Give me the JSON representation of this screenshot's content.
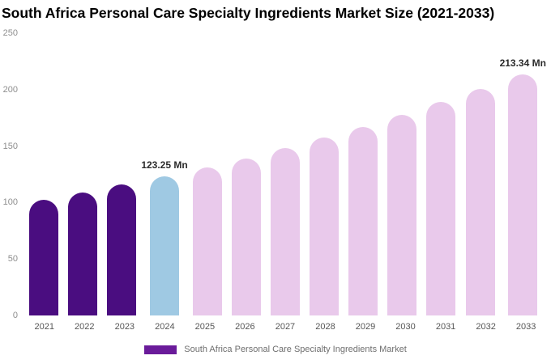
{
  "chart_data": {
    "type": "bar",
    "title": "South Africa Personal Care Specialty Ingredients Market Size (2021-2033)",
    "xlabel": "",
    "ylabel": "",
    "ylim": [
      0,
      250
    ],
    "yticks": [
      0,
      50,
      100,
      150,
      200,
      250
    ],
    "grid": false,
    "categories": [
      "2021",
      "2022",
      "2023",
      "2024",
      "2025",
      "2026",
      "2027",
      "2028",
      "2029",
      "2030",
      "2031",
      "2032",
      "2033"
    ],
    "values": [
      102.6,
      109.0,
      115.9,
      123.25,
      131.0,
      139.2,
      148.0,
      157.3,
      167.2,
      177.7,
      188.9,
      200.7,
      213.34
    ],
    "bar_colors": [
      "#4A0D80",
      "#4A0D80",
      "#4A0D80",
      "#9FC9E3",
      "#E9C9EB",
      "#E9C9EB",
      "#E9C9EB",
      "#E9C9EB",
      "#E9C9EB",
      "#E9C9EB",
      "#E9C9EB",
      "#E9C9EB",
      "#E9C9EB"
    ],
    "annotations": [
      {
        "category": "2024",
        "text": "123.25 Mn"
      },
      {
        "category": "2033",
        "text": "213.34 Mn"
      }
    ],
    "legend": {
      "label": "South Africa Personal Care Specialty Ingredients Market",
      "color": "#6A1B9A",
      "position": "bottom"
    },
    "colors": {
      "historical_bar": "#4A0D80",
      "current_year_bar": "#9FC9E3",
      "forecast_bar": "#E9C9EB",
      "title_text": "#000000",
      "axis_text": "#8e8e8e",
      "background": "#ffffff"
    }
  }
}
